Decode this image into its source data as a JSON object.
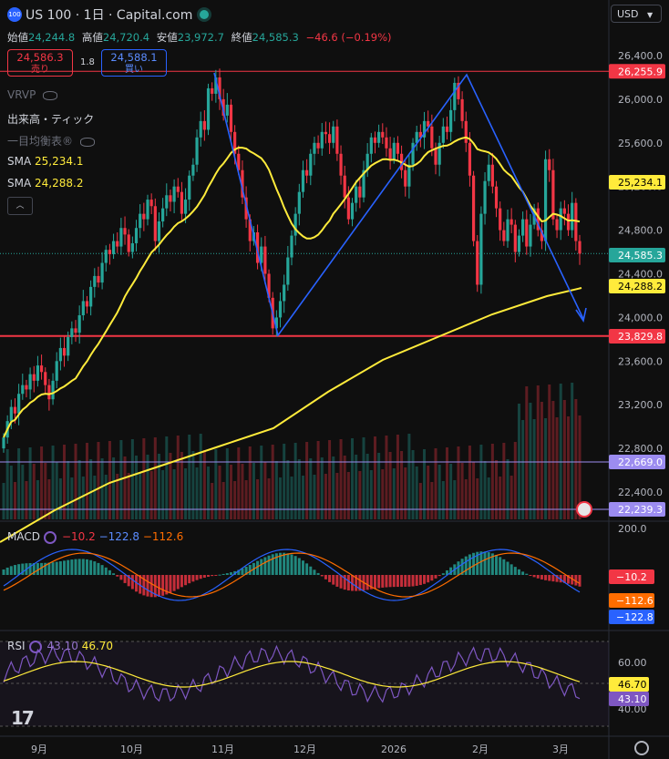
{
  "header": {
    "badge": "100",
    "title": "US 100 · 1日 · Capital.com",
    "ohlc": [
      {
        "k": "始値",
        "v": "24,244.8"
      },
      {
        "k": "高値",
        "v": "24,720.4"
      },
      {
        "k": "安値",
        "v": "23,972.7"
      },
      {
        "k": "終値",
        "v": "24,585.3"
      }
    ],
    "change": "−46.6 (−0.19%)"
  },
  "trade": {
    "sell_price": "24,586.3",
    "sell_label": "売り",
    "buy_price": "24,588.1",
    "buy_label": "買い",
    "spread": "1.8"
  },
  "indicators": {
    "vrvp": "VRVP",
    "volume": "出来高・ティック",
    "balance": "一目均衡表®",
    "sma1_label": "SMA",
    "sma1_value": "25,234.1",
    "sma2_label": "SMA",
    "sma2_value": "24,288.2"
  },
  "currency": "USD",
  "macd": {
    "label": "MACD",
    "v1": "−10.2",
    "v2": "−122.8",
    "v3": "−112.6"
  },
  "rsi": {
    "label": "RSI",
    "v1": "43.10",
    "v2": "46.70"
  },
  "colors": {
    "up": "#26a69a",
    "down": "#f23645",
    "sma": "#ffeb3b",
    "pattern": "#2962ff",
    "macd": "#2962ff",
    "signal": "#ff6d00",
    "rsi": "#7e57c2",
    "rsi_ma": "#ffeb3b"
  },
  "chart_data": {
    "type": "candlestick",
    "price_axis": {
      "min": 22240,
      "max": 26400,
      "ticks": [
        26400,
        26000,
        25600,
        25200,
        24800,
        24400,
        24000,
        23600,
        23200,
        22800,
        22400
      ]
    },
    "time_axis": [
      "9月",
      "10月",
      "11月",
      "12月",
      "2026",
      "2月",
      "3月"
    ],
    "price_tags": [
      {
        "label": "26,255.9",
        "value": 26255.9,
        "style": "red"
      },
      {
        "label": "25,234.1",
        "value": 25234.1,
        "style": "yellow"
      },
      {
        "label": "24,585.3",
        "value": 24585.3,
        "style": "teal"
      },
      {
        "label": "24,288.2",
        "value": 24288.2,
        "style": "yellow"
      },
      {
        "label": "23,829.8",
        "value": 23829.8,
        "style": "red"
      },
      {
        "label": "22,669.0",
        "value": 22669.0,
        "style": "purple"
      },
      {
        "label": "22,239.3",
        "value": 22239.3,
        "style": "purple"
      }
    ],
    "horizontal_lines": [
      26255.9,
      23829.8,
      22669.0,
      22239.3
    ],
    "closes": [
      22900,
      23050,
      23180,
      23120,
      23300,
      23380,
      23340,
      23480,
      23420,
      23560,
      23500,
      23380,
      23250,
      23420,
      23600,
      23720,
      23650,
      23820,
      23900,
      23860,
      24020,
      24150,
      24100,
      24280,
      24380,
      24320,
      24500,
      24620,
      24580,
      24700,
      24650,
      24820,
      24760,
      24600,
      24680,
      24820,
      24950,
      24900,
      25080,
      25020,
      24700,
      24880,
      25000,
      25120,
      25060,
      25200,
      25150,
      24950,
      25080,
      25300,
      25400,
      25650,
      25800,
      25720,
      26100,
      26050,
      26200,
      26000,
      25850,
      25950,
      25700,
      25500,
      25350,
      25100,
      24900,
      24700,
      24780,
      24500,
      24650,
      24400,
      24180,
      23900,
      24000,
      24150,
      24300,
      24550,
      24750,
      24950,
      25150,
      25350,
      25300,
      25500,
      25600,
      25550,
      25700,
      25680,
      25600,
      25750,
      25500,
      25300,
      25100,
      24900,
      25050,
      25200,
      25100,
      25350,
      25500,
      25650,
      25600,
      25700,
      25650,
      25550,
      25450,
      25600,
      25500,
      25350,
      25200,
      25400,
      25600,
      25700,
      25650,
      25800,
      25750,
      25550,
      25400,
      25600,
      25750,
      25700,
      25900,
      26150,
      26000,
      25800,
      25600,
      25300,
      24700,
      24300,
      24950,
      25250,
      25400,
      25200,
      25000,
      24800,
      24700,
      24900,
      24850,
      24600,
      24750,
      24900,
      24650,
      24850,
      25000,
      24800,
      24700,
      25450,
      25350,
      24900,
      24800,
      25000,
      24950,
      24800,
      25050,
      24700,
      24585
    ],
    "sma_fast_end": 25234.1,
    "sma_slow_end": 24288.2,
    "macd_axis": {
      "ticks": [
        "200.0"
      ]
    },
    "macd_tags": [
      {
        "label": "−10.2",
        "style": "red"
      },
      {
        "label": "−112.6",
        "style": "orange"
      },
      {
        "label": "−122.8",
        "style": "blue"
      }
    ],
    "rsi_axis": {
      "ticks": [
        "60.00",
        "40.00"
      ]
    },
    "rsi_tags": [
      {
        "label": "46.70",
        "style": "yellow"
      },
      {
        "label": "43.10",
        "style": "purple"
      }
    ]
  }
}
